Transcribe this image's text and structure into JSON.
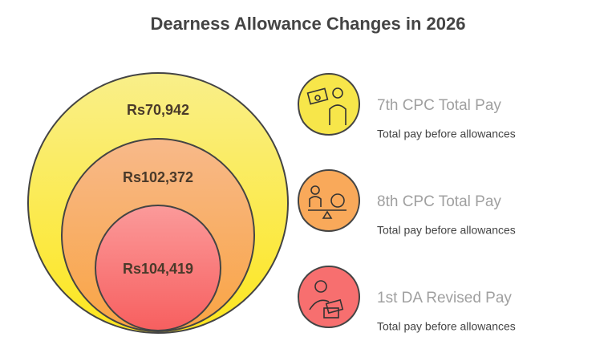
{
  "title": "Dearness Allowance Changes in 2026",
  "items": [
    {
      "amount": "Rs70,942",
      "label": "7th CPC Total Pay",
      "description": "Total pay before allowances"
    },
    {
      "amount": "Rs102,372",
      "label": "8th CPC Total Pay",
      "description": "Total pay before allowances"
    },
    {
      "amount": "Rs104,419",
      "label": "1st DA Revised Pay",
      "description": "Total pay before allowances"
    }
  ]
}
